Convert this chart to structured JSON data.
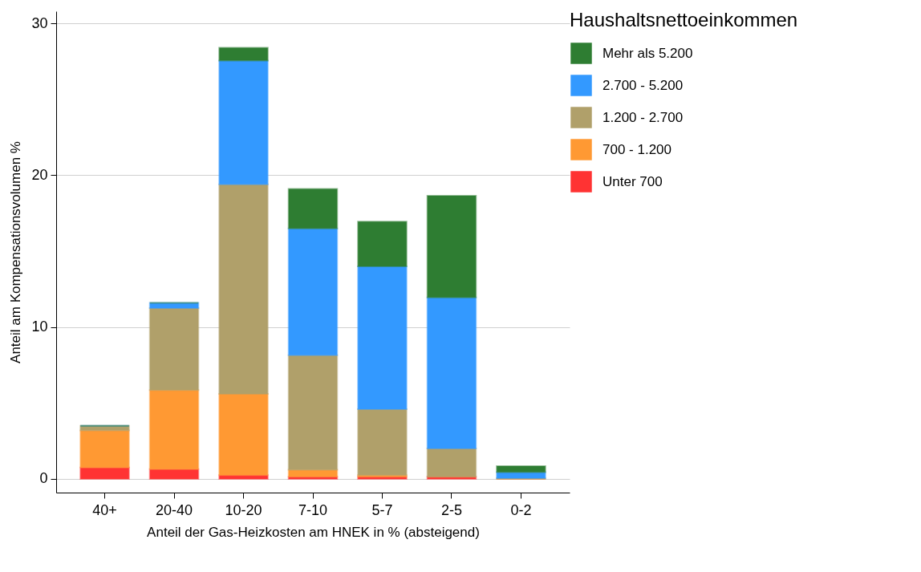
{
  "chart_data": {
    "type": "bar",
    "stacked": true,
    "xlabel": "Anteil der Gas-Heizkosten am HNEK in % (absteigend)",
    "ylabel": "Anteil am Kompensationsvolumen %",
    "legend_title": "Haushaltsnettoeinkommen",
    "categories": [
      "40+",
      "20-40",
      "10-20",
      "7-10",
      "5-7",
      "2-5",
      "0-2"
    ],
    "series": [
      {
        "name": "Unter 700",
        "color": "#ff3333",
        "values": [
          0.75,
          0.65,
          0.25,
          0.15,
          0.15,
          0.15,
          0
        ]
      },
      {
        "name": "700 - 1.200",
        "color": "#ff9933",
        "values": [
          2.45,
          5.2,
          5.35,
          0.45,
          0.1,
          0,
          0
        ]
      },
      {
        "name": "1.200 - 2.700",
        "color": "#b0a06a",
        "values": [
          0.3,
          5.4,
          13.8,
          7.55,
          4.35,
          1.85,
          0.05
        ]
      },
      {
        "name": "2.700 - 5.200",
        "color": "#3399ff",
        "values": [
          0,
          0.35,
          8.15,
          8.35,
          9.4,
          9.95,
          0.4
        ]
      },
      {
        "name": "Mehr als 5.200",
        "color": "#2e7d32",
        "values": [
          0,
          0,
          0.85,
          2.6,
          2.95,
          6.7,
          0.4
        ]
      }
    ],
    "ylim": [
      -0.9,
      30.8
    ],
    "yticks": [
      0,
      10,
      20,
      30
    ],
    "grid": "y",
    "legend": "right"
  }
}
